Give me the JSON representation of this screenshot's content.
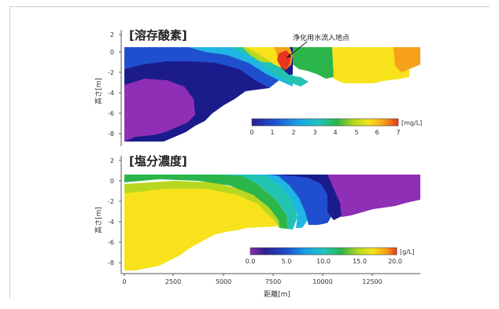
{
  "chart_data": [
    {
      "type": "heatmap",
      "title": "[溶存酸素]",
      "ylabel": "高さ[m]",
      "y_ticks": [
        "2",
        "0",
        "-2",
        "-4",
        "-6",
        "-8"
      ],
      "annotation": "浄化用水流入地点",
      "colorbar": {
        "unit": "[mg/L]",
        "ticks": [
          "0",
          "1",
          "2",
          "3",
          "4",
          "5",
          "6",
          "7"
        ],
        "colors": [
          "#2a1f8f",
          "#1f4fcf",
          "#1aa0e6",
          "#22c3c3",
          "#2bb54a",
          "#b8d81f",
          "#f7e21c",
          "#f7a11a",
          "#e8361e"
        ]
      }
    },
    {
      "type": "heatmap",
      "title": "[塩分濃度]",
      "ylabel": "高さ[m]",
      "y_ticks": [
        "2",
        "0",
        "-2",
        "-4",
        "-6",
        "-8"
      ],
      "xlabel": "距離[m]",
      "x_ticks": [
        "0",
        "2500",
        "5000",
        "7500",
        "10000",
        "12500"
      ],
      "colorbar": {
        "unit": "[g/L]",
        "ticks": [
          "0.0",
          "5.0",
          "10.0",
          "15.0",
          "20.0"
        ],
        "colors": [
          "#8a2db0",
          "#2a1f8f",
          "#1f4fcf",
          "#1aa0e6",
          "#22c3c3",
          "#2bb54a",
          "#b8d81f",
          "#f7e21c",
          "#f7a11a",
          "#e8361e"
        ]
      }
    }
  ],
  "colors": {
    "purple": "#8f2fb5",
    "navy": "#1b1b8c",
    "blue": "#1f4fcf",
    "cyan": "#1fb6e3",
    "teal": "#22c3b0",
    "green": "#2bb54a",
    "yellowgreen": "#b8d81f",
    "yellow": "#f7e21c",
    "orange": "#f7a11a",
    "red": "#e8361e"
  }
}
